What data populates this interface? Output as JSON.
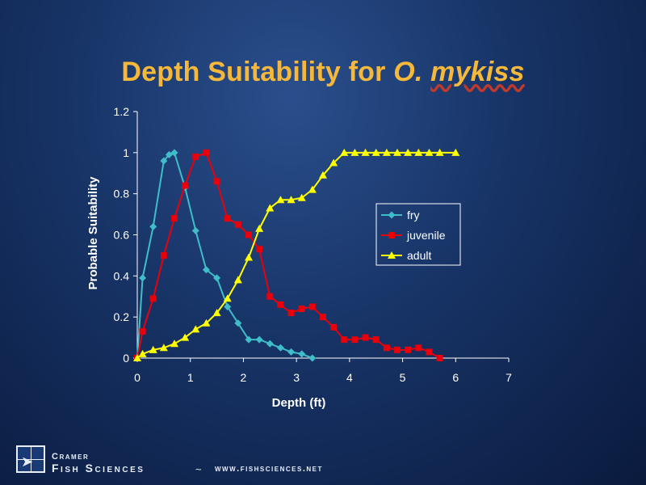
{
  "title": {
    "main": "Depth Suitability for ",
    "species_prefix": "O. ",
    "species_name": "mykiss"
  },
  "footer": {
    "company_top": "Cramer",
    "company_main": "Fish Sciences",
    "separator": "~",
    "url": "www.fishsciences.net",
    "logo_icon": "fish-grid-logo"
  },
  "chart_data": {
    "type": "line",
    "xlabel": "Depth (ft)",
    "ylabel": "Probable Suitability",
    "xlim": [
      0,
      7
    ],
    "ylim": [
      0,
      1.2
    ],
    "xticks": [
      "0",
      "1",
      "2",
      "3",
      "4",
      "5",
      "6",
      "7"
    ],
    "yticks": [
      "0",
      "0.2",
      "0.4",
      "0.6",
      "0.8",
      "1",
      "1.2"
    ],
    "grid": false,
    "legend_position": "right",
    "series": [
      {
        "name": "fry",
        "color": "#3fbdc9",
        "marker": "diamond",
        "points": [
          [
            0,
            0
          ],
          [
            0.1,
            0.39
          ],
          [
            0.3,
            0.64
          ],
          [
            0.5,
            0.96
          ],
          [
            0.6,
            0.99
          ],
          [
            0.7,
            1.0
          ],
          [
            0.9,
            0.83
          ],
          [
            1.1,
            0.62
          ],
          [
            1.3,
            0.43
          ],
          [
            1.5,
            0.39
          ],
          [
            1.7,
            0.25
          ],
          [
            1.9,
            0.17
          ],
          [
            2.1,
            0.09
          ],
          [
            2.3,
            0.09
          ],
          [
            2.5,
            0.07
          ],
          [
            2.7,
            0.05
          ],
          [
            2.9,
            0.03
          ],
          [
            3.1,
            0.02
          ],
          [
            3.3,
            0.0
          ]
        ]
      },
      {
        "name": "juvenile",
        "color": "#e8000a",
        "marker": "square",
        "points": [
          [
            0,
            0
          ],
          [
            0.1,
            0.13
          ],
          [
            0.3,
            0.29
          ],
          [
            0.5,
            0.5
          ],
          [
            0.7,
            0.68
          ],
          [
            0.9,
            0.84
          ],
          [
            1.1,
            0.98
          ],
          [
            1.3,
            1.0
          ],
          [
            1.5,
            0.86
          ],
          [
            1.7,
            0.68
          ],
          [
            1.9,
            0.65
          ],
          [
            2.1,
            0.6
          ],
          [
            2.3,
            0.53
          ],
          [
            2.5,
            0.3
          ],
          [
            2.7,
            0.26
          ],
          [
            2.9,
            0.22
          ],
          [
            3.1,
            0.24
          ],
          [
            3.3,
            0.25
          ],
          [
            3.5,
            0.2
          ],
          [
            3.7,
            0.15
          ],
          [
            3.9,
            0.09
          ],
          [
            4.1,
            0.09
          ],
          [
            4.3,
            0.1
          ],
          [
            4.5,
            0.09
          ],
          [
            4.7,
            0.05
          ],
          [
            4.9,
            0.04
          ],
          [
            5.1,
            0.04
          ],
          [
            5.3,
            0.05
          ],
          [
            5.5,
            0.03
          ],
          [
            5.7,
            0.0
          ]
        ]
      },
      {
        "name": "adult",
        "color": "#ffff00",
        "marker": "triangle",
        "points": [
          [
            0,
            0
          ],
          [
            0.1,
            0.02
          ],
          [
            0.3,
            0.04
          ],
          [
            0.5,
            0.05
          ],
          [
            0.7,
            0.07
          ],
          [
            0.9,
            0.1
          ],
          [
            1.1,
            0.14
          ],
          [
            1.3,
            0.17
          ],
          [
            1.5,
            0.22
          ],
          [
            1.7,
            0.29
          ],
          [
            1.9,
            0.38
          ],
          [
            2.1,
            0.49
          ],
          [
            2.3,
            0.63
          ],
          [
            2.5,
            0.73
          ],
          [
            2.7,
            0.77
          ],
          [
            2.9,
            0.77
          ],
          [
            3.1,
            0.78
          ],
          [
            3.3,
            0.82
          ],
          [
            3.5,
            0.89
          ],
          [
            3.7,
            0.95
          ],
          [
            3.9,
            1.0
          ],
          [
            4.1,
            1.0
          ],
          [
            4.3,
            1.0
          ],
          [
            4.5,
            1.0
          ],
          [
            4.7,
            1.0
          ],
          [
            4.9,
            1.0
          ],
          [
            5.1,
            1.0
          ],
          [
            5.3,
            1.0
          ],
          [
            5.5,
            1.0
          ],
          [
            5.7,
            1.0
          ],
          [
            6.0,
            1.0
          ]
        ]
      }
    ]
  }
}
